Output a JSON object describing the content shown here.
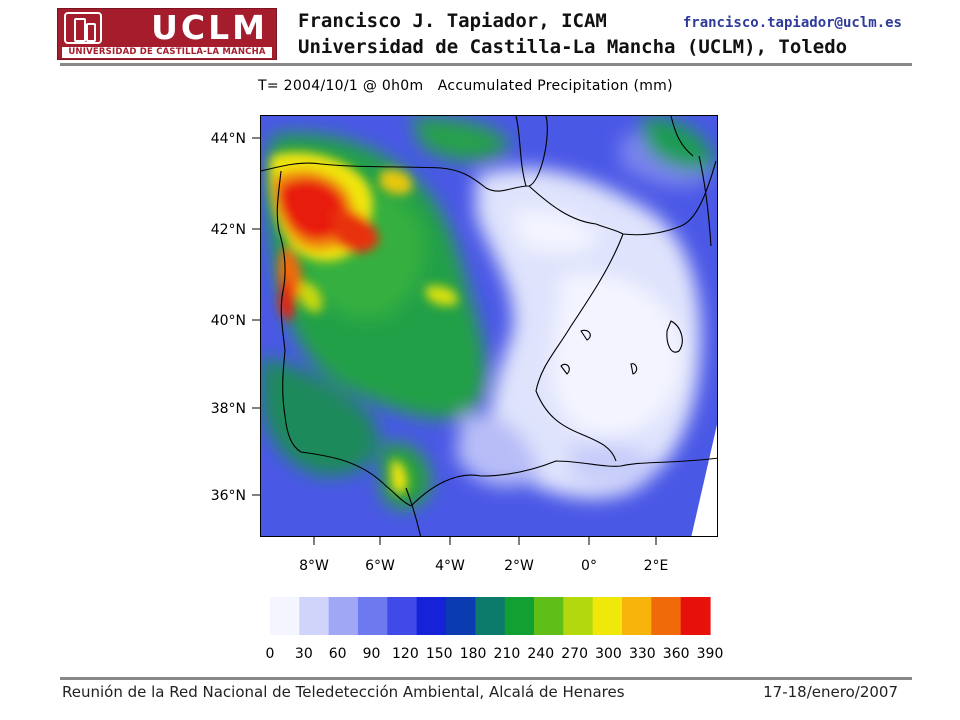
{
  "header": {
    "logo_text": "UCLM",
    "logo_subtext": "UNIVERSIDAD DE CASTILLA-LA MANCHA",
    "author": "Francisco J. Tapiador, ICAM",
    "email": "francisco.tapiador@uclm.es",
    "affiliation": "Universidad de Castilla-La Mancha (UCLM), Toledo"
  },
  "map": {
    "title": "T= 2004/10/1 @ 0h0m   Accumulated Precipitation (mm)",
    "lat_labels": [
      "44°N",
      "42°N",
      "40°N",
      "38°N",
      "36°N"
    ],
    "lon_labels": [
      "8°W",
      "6°W",
      "4°W",
      "2°W",
      "0°",
      "2°E"
    ],
    "colorbar_ticks": [
      "0",
      "30",
      "60",
      "90",
      "120",
      "150",
      "180",
      "210",
      "240",
      "270",
      "300",
      "330",
      "360",
      "390"
    ],
    "colorbar_colors": [
      "#f5f5ff",
      "#d0d4fb",
      "#a0a8f5",
      "#6e78ef",
      "#3f4ae8",
      "#1622d8",
      "#0b3bb0",
      "#0b7a6a",
      "#12a032",
      "#5fbf18",
      "#b4d80e",
      "#f0e80a",
      "#f8b40a",
      "#f06a0a",
      "#e8100a"
    ]
  },
  "footer": {
    "left": "Reunión de la Red Nacional de Teledetección Ambiental, Alcalá de Henares",
    "right": "17-18/enero/2007"
  }
}
